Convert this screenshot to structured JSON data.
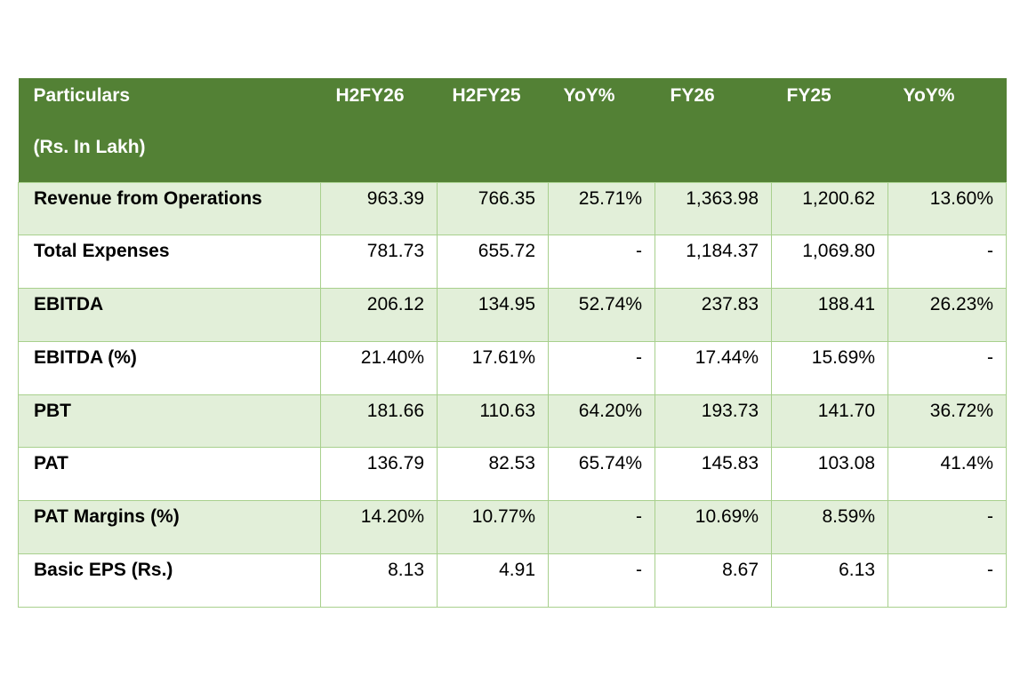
{
  "table": {
    "header": {
      "particulars": "Particulars",
      "unit": "(Rs. In Lakh)",
      "columns": [
        "H2FY26",
        "H2FY25",
        "YoY%",
        "FY26",
        "FY25",
        "YoY%"
      ]
    },
    "rows": [
      {
        "label": "Revenue from Operations",
        "values": [
          "963.39",
          "766.35",
          "25.71%",
          "1,363.98",
          "1,200.62",
          "13.60%"
        ]
      },
      {
        "label": "Total Expenses",
        "values": [
          "781.73",
          "655.72",
          "-",
          "1,184.37",
          "1,069.80",
          "-"
        ]
      },
      {
        "label": "EBITDA",
        "values": [
          "206.12",
          "134.95",
          "52.74%",
          "237.83",
          "188.41",
          "26.23%"
        ]
      },
      {
        "label": "EBITDA (%)",
        "values": [
          "21.40%",
          "17.61%",
          "-",
          "17.44%",
          "15.69%",
          "-"
        ]
      },
      {
        "label": "PBT",
        "values": [
          "181.66",
          "110.63",
          "64.20%",
          "193.73",
          "141.70",
          "36.72%"
        ]
      },
      {
        "label": "PAT",
        "values": [
          "136.79",
          "82.53",
          "65.74%",
          "145.83",
          "103.08",
          "41.4%"
        ]
      },
      {
        "label": "PAT Margins (%)",
        "values": [
          "14.20%",
          "10.77%",
          "-",
          "10.69%",
          "8.59%",
          "-"
        ]
      },
      {
        "label": "Basic EPS (Rs.)",
        "values": [
          "8.13",
          "4.91",
          "-",
          "8.67",
          "6.13",
          "-"
        ]
      }
    ]
  },
  "colors": {
    "header_bg": "#538135",
    "band_bg": "#e2efd9",
    "border": "#a8d08d"
  }
}
